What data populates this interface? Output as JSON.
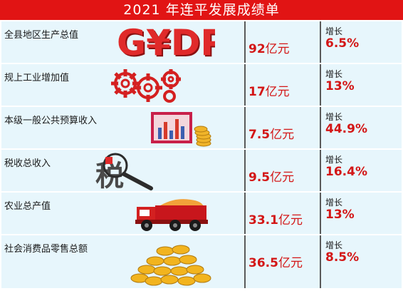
{
  "title": "2021 年连平发展成绩单",
  "gdp_illustration_text": "G¥DP",
  "tax_illustration_text": "税",
  "rows": [
    {
      "label": "全县地区生产总值",
      "value": "92",
      "unit": "亿元",
      "growth_label": "增长",
      "growth": "6.5%",
      "icon": "gdp-letters-icon"
    },
    {
      "label": "规上工业增加值",
      "value": "17",
      "unit": "亿元",
      "growth_label": "增长",
      "growth": "13%",
      "icon": "gears-icon"
    },
    {
      "label": "本级一般公共预算收入",
      "value": "7.5",
      "unit": "亿元",
      "growth_label": "增长",
      "growth": "44.9%",
      "icon": "bar-chart-coins-icon"
    },
    {
      "label": "税收总收入",
      "value": "9.5",
      "unit": "亿元",
      "growth_label": "增长",
      "growth": "16.4%",
      "icon": "tax-magnifier-icon"
    },
    {
      "label": "农业总产值",
      "value": "33.1",
      "unit": "亿元",
      "growth_label": "增长",
      "growth": "13%",
      "icon": "truck-icon"
    },
    {
      "label": "社会消费品零售总额",
      "value": "36.5",
      "unit": "亿元",
      "growth_label": "增长",
      "growth": "8.5%",
      "icon": "coin-pile-icon"
    }
  ]
}
